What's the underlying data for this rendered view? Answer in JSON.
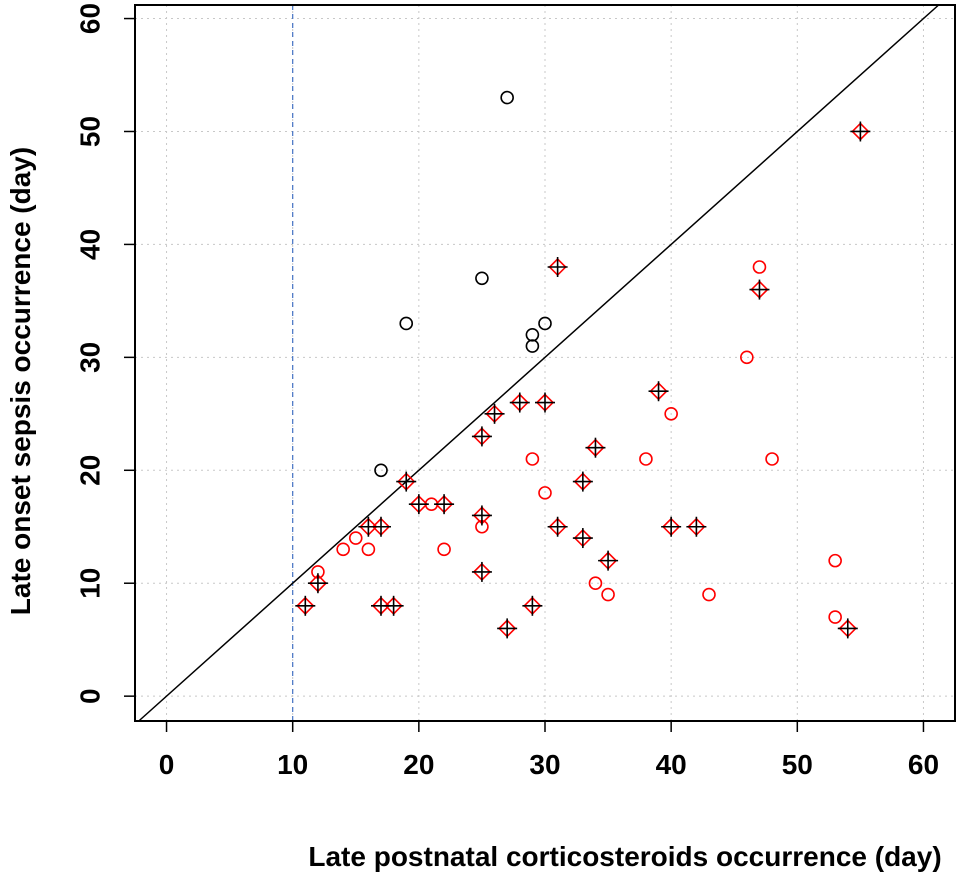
{
  "chart_data": {
    "type": "scatter",
    "title": "",
    "xlabel": "Late postnatal corticosteroids occurrence (day)",
    "ylabel": "Late onset sepsis occurrence (day)",
    "xlim": [
      -2.5,
      62.5
    ],
    "ylim": [
      -2.2,
      61.2
    ],
    "xticks": [
      0,
      10,
      20,
      30,
      40,
      50,
      60
    ],
    "yticks": [
      0,
      10,
      20,
      30,
      40,
      50,
      60
    ],
    "grid": true,
    "reference_lines": {
      "identity": "y = x",
      "vertical_x": 10,
      "vertical_color": "#4472c4"
    },
    "colors": {
      "black": "#000000",
      "red": "#ff0000",
      "grid": "#c8c8c8"
    },
    "series": [
      {
        "name": "black-circles",
        "marker": "open-circle",
        "color": "#000000",
        "points": [
          [
            27,
            53
          ],
          [
            25,
            37
          ],
          [
            19,
            33
          ],
          [
            30,
            33
          ],
          [
            29,
            32
          ],
          [
            29,
            31
          ],
          [
            17,
            20
          ]
        ]
      },
      {
        "name": "red-circles",
        "marker": "open-circle",
        "color": "#ff0000",
        "points": [
          [
            47,
            38
          ],
          [
            46,
            30
          ],
          [
            40,
            25
          ],
          [
            29,
            21
          ],
          [
            38,
            21
          ],
          [
            48,
            21
          ],
          [
            30,
            18
          ],
          [
            21,
            17
          ],
          [
            12,
            11
          ],
          [
            14,
            13
          ],
          [
            15,
            14
          ],
          [
            16,
            13
          ],
          [
            22,
            13
          ],
          [
            25,
            15
          ],
          [
            34,
            10
          ],
          [
            35,
            9
          ],
          [
            43,
            9
          ],
          [
            53,
            12
          ],
          [
            53,
            7
          ]
        ]
      },
      {
        "name": "red-diamonds-plus",
        "marker": "diamond-plus",
        "color": "#ff0000",
        "cross_color": "#000000",
        "points": [
          [
            55,
            50
          ],
          [
            31,
            38
          ],
          [
            47,
            36
          ],
          [
            26,
            25
          ],
          [
            28,
            26
          ],
          [
            30,
            26
          ],
          [
            39,
            27
          ],
          [
            25,
            23
          ],
          [
            34,
            22
          ],
          [
            19,
            19
          ],
          [
            33,
            19
          ],
          [
            20,
            17
          ],
          [
            22,
            17
          ],
          [
            25,
            16
          ],
          [
            16,
            15
          ],
          [
            17,
            15
          ],
          [
            31,
            15
          ],
          [
            40,
            15
          ],
          [
            42,
            15
          ],
          [
            33,
            14
          ],
          [
            35,
            12
          ],
          [
            12,
            10
          ],
          [
            25,
            11
          ],
          [
            11,
            8
          ],
          [
            17,
            8
          ],
          [
            18,
            8
          ],
          [
            29,
            8
          ],
          [
            27,
            6
          ],
          [
            54,
            6
          ]
        ]
      }
    ]
  }
}
